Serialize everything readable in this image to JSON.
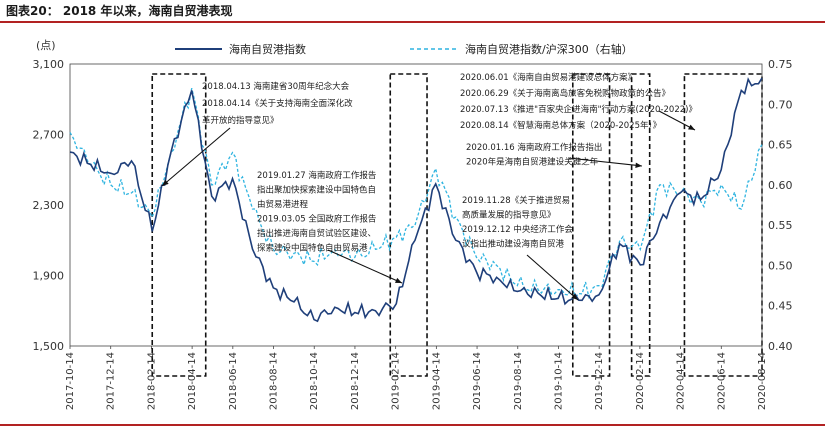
{
  "header": {
    "title": "图表20：  2018 年以来，海南自贸港表现"
  },
  "chart_data": {
    "type": "line",
    "left_axis": {
      "unit": "(点)",
      "ylim": [
        1500,
        3100
      ],
      "ticks": [
        1500,
        1900,
        2300,
        2700,
        3100
      ],
      "tick_labels": [
        "1,500",
        "1,900",
        "2,300",
        "2,700",
        "3,100"
      ]
    },
    "right_axis": {
      "ylim": [
        0.4,
        0.75
      ],
      "ticks": [
        0.4,
        0.45,
        0.5,
        0.55,
        0.6,
        0.65,
        0.7,
        0.75
      ],
      "tick_labels": [
        "0.40",
        "0.45",
        "0.50",
        "0.55",
        "0.60",
        "0.65",
        "0.70",
        "0.75"
      ]
    },
    "x_tick_labels": [
      "2017-10-14",
      "2017-12-14",
      "2018-02-14",
      "2018-04-14",
      "2018-06-14",
      "2018-08-14",
      "2018-10-14",
      "2018-12-14",
      "2019-02-14",
      "2019-04-14",
      "2019-06-14",
      "2019-08-14",
      "2019-10-14",
      "2019-12-14",
      "2020-02-14",
      "2020-04-14",
      "2020-06-14",
      "2020-08-14"
    ],
    "legend": [
      {
        "name": "海南自贸港指数",
        "style": "solid",
        "color": "#1f3f7a",
        "axis": "left"
      },
      {
        "name": "海南自贸港指数/沪深300（右轴）",
        "style": "dashed",
        "color": "#2fb4e0",
        "axis": "right"
      }
    ],
    "series": [
      {
        "name": "海南自贸港指数",
        "axis": "left",
        "x": [
          "2017-10-14",
          "2017-11-14",
          "2017-12-14",
          "2018-01-14",
          "2018-02-14",
          "2018-03-14",
          "2018-04-14",
          "2018-05-14",
          "2018-06-14",
          "2018-07-14",
          "2018-08-14",
          "2018-09-14",
          "2018-10-14",
          "2018-11-14",
          "2018-12-14",
          "2019-01-14",
          "2019-02-14",
          "2019-03-14",
          "2019-04-14",
          "2019-05-14",
          "2019-06-14",
          "2019-07-14",
          "2019-08-14",
          "2019-09-14",
          "2019-10-14",
          "2019-11-14",
          "2019-12-14",
          "2020-01-14",
          "2020-02-14",
          "2020-03-14",
          "2020-04-14",
          "2020-05-14",
          "2020-06-14",
          "2020-07-14",
          "2020-08-14"
        ],
        "y": [
          2600,
          2530,
          2480,
          2550,
          2150,
          2600,
          2950,
          2350,
          2450,
          2050,
          1830,
          1750,
          1650,
          1720,
          1690,
          1700,
          1740,
          2100,
          2420,
          2100,
          1920,
          1890,
          1810,
          1800,
          1770,
          1760,
          1790,
          2080,
          1960,
          2200,
          2370,
          2330,
          2500,
          2950,
          3020
        ]
      },
      {
        "name": "海南自贸港指数/沪深300（右轴）",
        "axis": "right",
        "x": [
          "2017-10-14",
          "2017-11-14",
          "2017-12-14",
          "2018-01-14",
          "2018-02-14",
          "2018-03-14",
          "2018-04-14",
          "2018-05-14",
          "2018-06-14",
          "2018-07-14",
          "2018-08-14",
          "2018-09-14",
          "2018-10-14",
          "2018-11-14",
          "2018-12-14",
          "2019-01-14",
          "2019-02-14",
          "2019-03-14",
          "2019-04-14",
          "2019-05-14",
          "2019-06-14",
          "2019-07-14",
          "2019-08-14",
          "2019-09-14",
          "2019-10-14",
          "2019-11-14",
          "2019-12-14",
          "2020-01-14",
          "2020-02-14",
          "2020-03-14",
          "2020-04-14",
          "2020-05-14",
          "2020-06-14",
          "2020-07-14",
          "2020-08-14"
        ],
        "y": [
          0.665,
          0.625,
          0.6,
          0.59,
          0.56,
          0.64,
          0.72,
          0.6,
          0.64,
          0.57,
          0.52,
          0.515,
          0.505,
          0.52,
          0.51,
          0.52,
          0.535,
          0.55,
          0.62,
          0.56,
          0.51,
          0.5,
          0.475,
          0.47,
          0.47,
          0.465,
          0.475,
          0.53,
          0.52,
          0.6,
          0.59,
          0.58,
          0.6,
          0.57,
          0.65
        ]
      }
    ],
    "highlight_windows": [
      {
        "from": "2018-02-14",
        "to": "2018-05-05"
      },
      {
        "from": "2019-02-05",
        "to": "2019-04-01"
      },
      {
        "from": "2019-11-05",
        "to": "2019-12-30"
      },
      {
        "from": "2020-02-01",
        "to": "2020-02-28"
      },
      {
        "from": "2020-04-20",
        "to": "2020-08-14"
      }
    ],
    "annotations": [
      {
        "id": "a1",
        "lines": [
          "2018.04.13 海南建省30周年纪念大会",
          "2018.04.14《关于支持海南全面深化改",
          "革开放的指导意见》"
        ]
      },
      {
        "id": "a2",
        "lines": [
          "2019.01.27 海南政府工作报告",
          "指出聚加快探索建设中国特色自",
          "由贸易港进程",
          "2019.03.05 全国政府工作报告",
          "指出推进海南自贸试验区建设、",
          "探索建设中国特色自由贸易港"
        ]
      },
      {
        "id": "a3",
        "lines": [
          "2019.11.28《关于推进贸易",
          "高质量发展的指导意见》",
          "2019.12.12 中央经济工作会",
          "议指出推动建设海南自贸港"
        ]
      },
      {
        "id": "a4",
        "lines": [
          "2020.01.16 海南政府工作报告指出",
          "2020年是海南自贸港建设关键之年"
        ]
      },
      {
        "id": "a5",
        "lines": [
          "2020.06.01《海南自由贸易港建设总体方案》",
          "2020.06.29《关于海南离岛旅客免税购物政策的公告》",
          "2020.07.13《推进\"百家央企进海南\"行动方案(2020-2022)》",
          "2020.08.14《智慧海南总体方案（2020-2025年）》"
        ]
      }
    ]
  }
}
